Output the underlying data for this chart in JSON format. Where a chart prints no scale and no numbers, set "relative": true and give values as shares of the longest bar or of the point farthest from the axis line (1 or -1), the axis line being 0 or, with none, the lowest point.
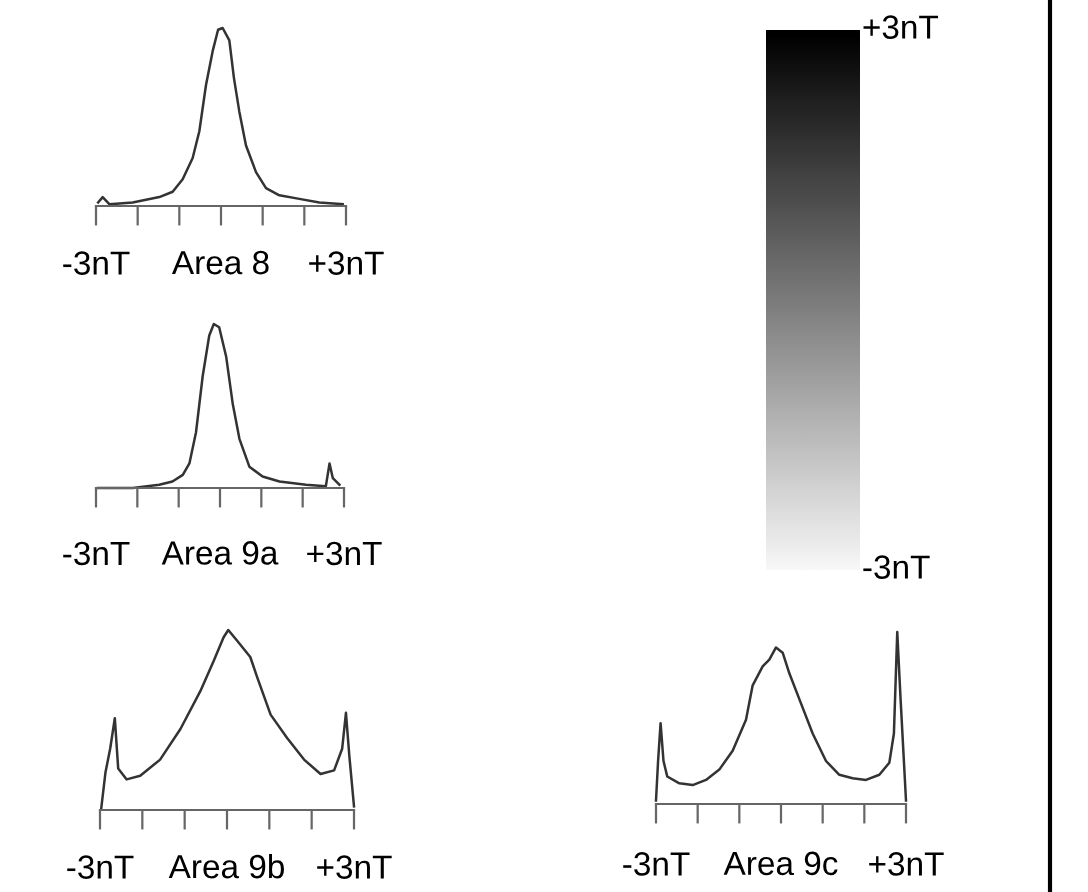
{
  "chart_data": [
    {
      "type": "line",
      "relative": true,
      "xlabel": "Area 8",
      "xlim": [
        -3,
        3
      ],
      "xticks": [
        {
          "value": -3,
          "label": "-3nT"
        },
        {
          "value": -2,
          "label": null
        },
        {
          "value": -1,
          "label": null
        },
        {
          "value": 0,
          "label": null
        },
        {
          "value": 1,
          "label": null
        },
        {
          "value": 2,
          "label": null
        },
        {
          "value": 3,
          "label": "+3nT"
        }
      ],
      "tick_labels": "x",
      "grid": false,
      "legend": false,
      "series": [
        {
          "color": "#333333",
          "x": [
            -2.95,
            -2.84,
            -2.68,
            -2.12,
            -1.48,
            -1.16,
            -0.92,
            -0.68,
            -0.52,
            -0.36,
            -0.2,
            -0.07,
            0.04,
            0.2,
            0.31,
            0.44,
            0.6,
            0.84,
            1.08,
            1.4,
            1.88,
            2.36,
            2.92
          ],
          "values": [
            0.02,
            0.05,
            0.01,
            0.02,
            0.05,
            0.08,
            0.15,
            0.27,
            0.42,
            0.68,
            0.87,
            0.99,
            1,
            0.93,
            0.72,
            0.53,
            0.34,
            0.19,
            0.1,
            0.06,
            0.04,
            0.02,
            0.01
          ]
        }
      ]
    },
    {
      "type": "line",
      "relative": true,
      "xlabel": "Area 9a",
      "xlim": [
        -3,
        3
      ],
      "xticks": [
        {
          "value": -3,
          "label": "-3nT"
        },
        {
          "value": -2,
          "label": null
        },
        {
          "value": -1,
          "label": null
        },
        {
          "value": 0,
          "label": null
        },
        {
          "value": 1,
          "label": null
        },
        {
          "value": 2,
          "label": null
        },
        {
          "value": 3,
          "label": "+3nT"
        }
      ],
      "tick_labels": "x",
      "grid": false,
      "legend": false,
      "series": [
        {
          "color": "#333333",
          "x": [
            -2.95,
            -2.11,
            -1.47,
            -1.15,
            -0.9,
            -0.74,
            -0.58,
            -0.42,
            -0.26,
            -0.15,
            -0.02,
            0.15,
            0.31,
            0.47,
            0.71,
            1.03,
            1.44,
            2.08,
            2.56,
            2.65,
            2.73,
            2.89
          ],
          "values": [
            0,
            0,
            0.02,
            0.04,
            0.08,
            0.15,
            0.34,
            0.68,
            0.93,
            1,
            0.98,
            0.8,
            0.51,
            0.3,
            0.13,
            0.07,
            0.04,
            0.02,
            0.01,
            0.15,
            0.06,
            0.02
          ]
        }
      ]
    },
    {
      "type": "line",
      "relative": true,
      "xlabel": "Area 9b",
      "xlim": [
        -3,
        3
      ],
      "xticks": [
        {
          "value": -3,
          "label": "-3nT"
        },
        {
          "value": -2,
          "label": null
        },
        {
          "value": -1,
          "label": null
        },
        {
          "value": 0,
          "label": null
        },
        {
          "value": 1,
          "label": null
        },
        {
          "value": 2,
          "label": null
        },
        {
          "value": 3,
          "label": "+3nT"
        }
      ],
      "tick_labels": "x",
      "grid": false,
      "legend": false,
      "series": [
        {
          "color": "#333333",
          "x": [
            -2.97,
            -2.87,
            -2.76,
            -2.65,
            -2.57,
            -2.37,
            -2.05,
            -1.58,
            -1.1,
            -0.63,
            -0.31,
            -0.08,
            0.03,
            0.24,
            0.55,
            0.71,
            1.03,
            1.42,
            1.82,
            2.21,
            2.53,
            2.72,
            2.81,
            2.89,
            3.0
          ],
          "values": [
            0.01,
            0.21,
            0.34,
            0.51,
            0.23,
            0.17,
            0.19,
            0.28,
            0.45,
            0.66,
            0.83,
            0.96,
            1,
            0.94,
            0.85,
            0.74,
            0.53,
            0.4,
            0.28,
            0.2,
            0.22,
            0.34,
            0.54,
            0.3,
            0.02
          ]
        }
      ]
    },
    {
      "type": "line",
      "relative": true,
      "xlabel": "Area 9c",
      "xlim": [
        -3,
        3
      ],
      "xticks": [
        {
          "value": -3,
          "label": "-3nT"
        },
        {
          "value": -2,
          "label": null
        },
        {
          "value": -1,
          "label": null
        },
        {
          "value": 0,
          "label": null
        },
        {
          "value": 1,
          "label": null
        },
        {
          "value": 2,
          "label": null
        },
        {
          "value": 3,
          "label": "+3nT"
        }
      ],
      "tick_labels": "x",
      "grid": false,
      "legend": false,
      "series": [
        {
          "color": "#333333",
          "x": [
            -3,
            -2.95,
            -2.89,
            -2.82,
            -2.73,
            -2.44,
            -2.12,
            -1.8,
            -1.48,
            -1.16,
            -0.84,
            -0.68,
            -0.44,
            -0.28,
            -0.12,
            0.04,
            0.2,
            0.44,
            0.76,
            1.08,
            1.4,
            1.72,
            2.04,
            2.36,
            2.6,
            2.71,
            2.79,
            2.87,
            3.0
          ],
          "values": [
            0.02,
            0.25,
            0.47,
            0.25,
            0.16,
            0.12,
            0.11,
            0.14,
            0.2,
            0.31,
            0.49,
            0.69,
            0.8,
            0.84,
            0.91,
            0.88,
            0.76,
            0.61,
            0.41,
            0.25,
            0.17,
            0.15,
            0.14,
            0.17,
            0.24,
            0.41,
            1,
            0.61,
            0.02
          ]
        }
      ]
    },
    {
      "type": "other",
      "annotations": [
        "+3nT",
        "-3nT"
      ]
    }
  ]
}
